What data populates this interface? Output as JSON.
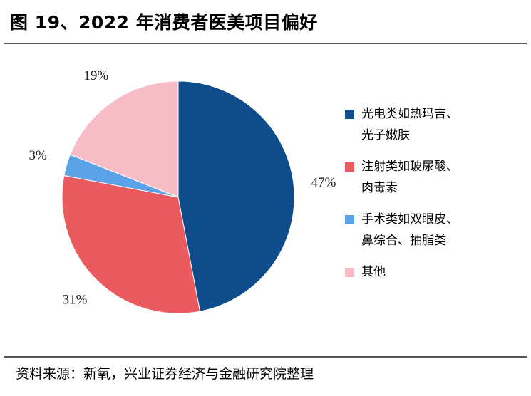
{
  "header": {
    "title": "图 19、2022 年消费者医美项目偏好"
  },
  "chart_data": {
    "type": "pie",
    "title": "图 19、2022 年消费者医美项目偏好",
    "slices": [
      {
        "label": "光电类如热玛吉、光子嫩肤",
        "value": 47,
        "value_label": "47%",
        "color": "#0F4C8C"
      },
      {
        "label": "注射类如玻尿酸、肉毒素",
        "value": 31,
        "value_label": "31%",
        "color": "#EB5A5E"
      },
      {
        "label": "手术类如双眼皮、鼻综合、抽脂类",
        "value": 3,
        "value_label": "3%",
        "color": "#5BA3E6"
      },
      {
        "label": "其他",
        "value": 19,
        "value_label": "19%",
        "color": "#F8BCC6"
      }
    ],
    "legend_position": "right"
  },
  "legend": {
    "items": [
      {
        "lines": [
          "光电类如热玛吉、",
          "光子嫩肤"
        ]
      },
      {
        "lines": [
          "注射类如玻尿酸、",
          "肉毒素"
        ]
      },
      {
        "lines": [
          "手术类如双眼皮、",
          "鼻综合、抽脂类"
        ]
      },
      {
        "lines": [
          "其他"
        ]
      }
    ]
  },
  "footer": {
    "source": "资料来源：新氧，兴业证券经济与金融研究院整理"
  }
}
